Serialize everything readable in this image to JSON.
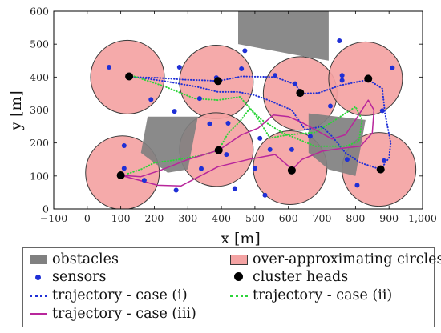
{
  "chart_data": {
    "type": "scatter",
    "xlabel": "x [m]",
    "ylabel": "y [m]",
    "xlim": [
      -100,
      1000
    ],
    "ylim": [
      0,
      600
    ],
    "xticks": [
      -100,
      0,
      100,
      200,
      300,
      400,
      500,
      600,
      700,
      800,
      900,
      1000
    ],
    "xtick_labels": [
      "−100",
      "0",
      "100",
      "200",
      "300",
      "400",
      "500",
      "600",
      "700",
      "800",
      "900",
      "1,000"
    ],
    "yticks": [
      0,
      100,
      200,
      300,
      400,
      500,
      600
    ],
    "ytick_labels": [
      "0",
      "100",
      "200",
      "300",
      "400",
      "500",
      "600"
    ],
    "grid": false,
    "legend": {
      "placement": "below",
      "entries": [
        "obstacles",
        "over-approximating circles",
        "sensors",
        "cluster heads",
        "trajectory - case (i)",
        "trajectory - case (ii)",
        "trajectory - case (iii)"
      ]
    },
    "obstacles": [
      {
        "name": "obstacles",
        "polygon": [
          [
            450,
            600
          ],
          [
            720,
            600
          ],
          [
            720,
            450
          ],
          [
            660,
            460
          ],
          [
            450,
            500
          ]
        ]
      },
      {
        "name": "obstacles",
        "polygon": [
          [
            180,
            280
          ],
          [
            330,
            280
          ],
          [
            300,
            120
          ],
          [
            240,
            110
          ],
          [
            160,
            170
          ]
        ]
      },
      {
        "name": "obstacles",
        "polygon": [
          [
            660,
            290
          ],
          [
            830,
            270
          ],
          [
            800,
            100
          ],
          [
            720,
            120
          ],
          [
            660,
            170
          ]
        ]
      }
    ],
    "circles": [
      {
        "name": "over-approximating circles",
        "center": [
          120,
          400
        ],
        "r": 110
      },
      {
        "name": "over-approximating circles",
        "center": [
          385,
          385
        ],
        "r": 110
      },
      {
        "name": "over-approximating circles",
        "center": [
          635,
          350
        ],
        "r": 110
      },
      {
        "name": "over-approximating circles",
        "center": [
          830,
          395
        ],
        "r": 110
      },
      {
        "name": "over-approximating circles",
        "center": [
          105,
          110
        ],
        "r": 110
      },
      {
        "name": "over-approximating circles",
        "center": [
          385,
          180
        ],
        "r": 110
      },
      {
        "name": "over-approximating circles",
        "center": [
          605,
          125
        ],
        "r": 110
      },
      {
        "name": "over-approximating circles",
        "center": [
          870,
          120
        ],
        "r": 110
      }
    ],
    "sensors": {
      "name": "sensors",
      "points": [
        [
          65,
          430
        ],
        [
          110,
          123
        ],
        [
          110,
          192
        ],
        [
          170,
          87
        ],
        [
          190,
          332
        ],
        [
          260,
          296
        ],
        [
          265,
          57
        ],
        [
          275,
          430
        ],
        [
          335,
          335
        ],
        [
          340,
          122
        ],
        [
          365,
          258
        ],
        [
          385,
          398
        ],
        [
          415,
          165
        ],
        [
          420,
          260
        ],
        [
          440,
          62
        ],
        [
          460,
          425
        ],
        [
          470,
          480
        ],
        [
          500,
          123
        ],
        [
          515,
          214
        ],
        [
          530,
          42
        ],
        [
          545,
          180
        ],
        [
          560,
          405
        ],
        [
          610,
          180
        ],
        [
          620,
          380
        ],
        [
          665,
          220
        ],
        [
          725,
          312
        ],
        [
          752,
          510
        ],
        [
          760,
          405
        ],
        [
          760,
          390
        ],
        [
          775,
          150
        ],
        [
          805,
          72
        ],
        [
          880,
          298
        ],
        [
          885,
          146
        ],
        [
          910,
          428
        ]
      ]
    },
    "cluster_heads": {
      "name": "cluster heads",
      "points": [
        [
          125,
          402
        ],
        [
          390,
          388
        ],
        [
          635,
          352
        ],
        [
          838,
          395
        ],
        [
          100,
          102
        ],
        [
          392,
          178
        ],
        [
          610,
          117
        ],
        [
          875,
          120
        ]
      ]
    },
    "series": [
      {
        "name": "trajectory - case (i)",
        "style": "dotted",
        "color": "#1f2fd6",
        "points": [
          [
            125,
            400
          ],
          [
            210,
            398
          ],
          [
            290,
            392
          ],
          [
            350,
            390
          ],
          [
            390,
            388
          ],
          [
            460,
            402
          ],
          [
            560,
            400
          ],
          [
            620,
            378
          ],
          [
            640,
            350
          ],
          [
            690,
            352
          ],
          [
            755,
            375
          ],
          [
            838,
            392
          ],
          [
            880,
            365
          ],
          [
            888,
            290
          ],
          [
            905,
            200
          ],
          [
            900,
            155
          ],
          [
            875,
            120
          ],
          [
            815,
            140
          ],
          [
            770,
            170
          ],
          [
            730,
            220
          ],
          [
            700,
            250
          ],
          [
            650,
            240
          ],
          [
            610,
            300
          ],
          [
            540,
            330
          ],
          [
            500,
            345
          ],
          [
            450,
            355
          ],
          [
            390,
            355
          ],
          [
            330,
            370
          ],
          [
            240,
            386
          ],
          [
            160,
            398
          ],
          [
            125,
            400
          ]
        ]
      },
      {
        "name": "trajectory - case (ii)",
        "style": "dotted",
        "color": "#2dd43a",
        "points": [
          [
            140,
            402
          ],
          [
            230,
            372
          ],
          [
            320,
            335
          ],
          [
            390,
            330
          ],
          [
            455,
            340
          ],
          [
            490,
            300
          ],
          [
            520,
            270
          ],
          [
            580,
            232
          ],
          [
            680,
            190
          ],
          [
            770,
            190
          ],
          [
            810,
            205
          ],
          [
            820,
            270
          ],
          [
            800,
            310
          ],
          [
            740,
            270
          ],
          [
            680,
            232
          ],
          [
            600,
            225
          ],
          [
            545,
            215
          ],
          [
            505,
            280
          ],
          [
            485,
            305
          ],
          [
            455,
            265
          ],
          [
            420,
            230
          ],
          [
            392,
            178
          ],
          [
            340,
            162
          ],
          [
            260,
            148
          ],
          [
            200,
            140
          ],
          [
            160,
            120
          ],
          [
            115,
            105
          ]
        ]
      },
      {
        "name": "trajectory - case (iii)",
        "style": "solid",
        "color": "#b8269b",
        "points": [
          [
            100,
            102
          ],
          [
            210,
            72
          ],
          [
            280,
            70
          ],
          [
            390,
            128
          ],
          [
            480,
            150
          ],
          [
            560,
            165
          ],
          [
            600,
            130
          ],
          [
            610,
            118
          ],
          [
            640,
            150
          ],
          [
            700,
            175
          ],
          [
            760,
            184
          ],
          [
            815,
            190
          ],
          [
            850,
            230
          ],
          [
            855,
            300
          ],
          [
            838,
            330
          ],
          [
            800,
            270
          ],
          [
            770,
            225
          ],
          [
            730,
            212
          ],
          [
            680,
            240
          ],
          [
            640,
            262
          ],
          [
            600,
            280
          ],
          [
            555,
            285
          ],
          [
            510,
            245
          ],
          [
            460,
            225
          ],
          [
            392,
            178
          ],
          [
            300,
            150
          ],
          [
            220,
            118
          ],
          [
            160,
            98
          ],
          [
            100,
            102
          ]
        ]
      }
    ]
  },
  "colors": {
    "obstacle": "#808080",
    "circle_fill": "#f4a3a3",
    "circle_stroke": "#3a3a3a",
    "sensor": "#1f2fd6",
    "cluster_head": "#000000",
    "case_i": "#1f2fd6",
    "case_ii": "#2dd43a",
    "case_iii": "#b8269b"
  }
}
